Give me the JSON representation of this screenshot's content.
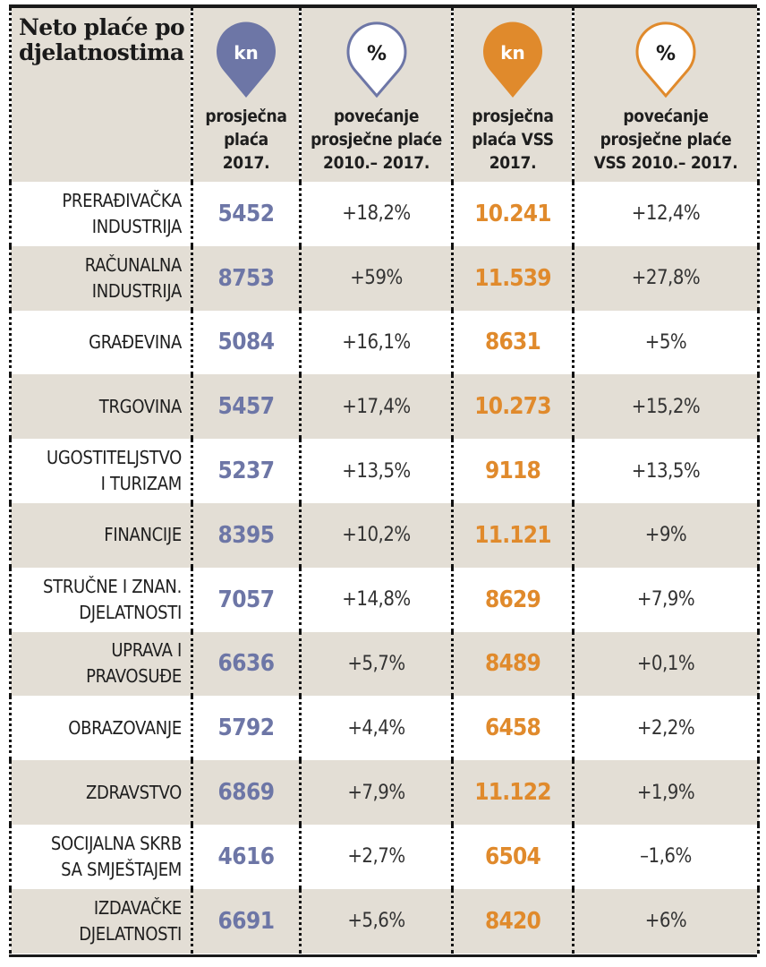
{
  "colors": {
    "blue": "#6d76a6",
    "orange": "#e08a2c",
    "band": "#e3ded5"
  },
  "header": {
    "title_lines": [
      "Neto plaće po",
      "djelatnostima"
    ],
    "columns": [
      {
        "icon": "kn",
        "icon_style": "filled-blue-pin",
        "label_lines": [
          "prosječna",
          "plaća",
          "2017."
        ]
      },
      {
        "icon": "%",
        "icon_style": "outlined-blue-pin",
        "label_lines": [
          "povećanje",
          "prosječne plaće",
          "2010.– 2017."
        ]
      },
      {
        "icon": "kn",
        "icon_style": "filled-orange-pin",
        "label_lines": [
          "prosječna",
          "plaća VSS",
          "2017."
        ]
      },
      {
        "icon": "%",
        "icon_style": "outlined-orange-pin",
        "label_lines": [
          "povećanje",
          "prosječne plaće",
          "VSS 2010.– 2017."
        ]
      }
    ]
  },
  "chart_data": {
    "type": "table",
    "title": "Neto plaće po djelatnostima",
    "columns": [
      "djelatnost",
      "prosječna plaća 2017.",
      "povećanje prosječne plaće 2010.– 2017.",
      "prosječna plaća VSS 2017.",
      "povećanje prosječne plaće VSS 2010.– 2017."
    ],
    "rows": [
      {
        "name_lines": [
          "PRERAĐIVAČKA",
          "INDUSTRIJA"
        ],
        "avg": "5452",
        "avg_change": "+18,2%",
        "vss": "10.241",
        "vss_change": "+12,4%"
      },
      {
        "name_lines": [
          "RAČUNALNA",
          "INDUSTRIJA"
        ],
        "avg": "8753",
        "avg_change": "+59%",
        "vss": "11.539",
        "vss_change": "+27,8%"
      },
      {
        "name_lines": [
          "GRAĐEVINA"
        ],
        "avg": "5084",
        "avg_change": "+16,1%",
        "vss": "8631",
        "vss_change": "+5%"
      },
      {
        "name_lines": [
          "TRGOVINA"
        ],
        "avg": "5457",
        "avg_change": "+17,4%",
        "vss": "10.273",
        "vss_change": "+15,2%"
      },
      {
        "name_lines": [
          "UGOSTITELJSTVO",
          "I TURIZAM"
        ],
        "avg": "5237",
        "avg_change": "+13,5%",
        "vss": "9118",
        "vss_change": "+13,5%"
      },
      {
        "name_lines": [
          "FINANCIJE"
        ],
        "avg": "8395",
        "avg_change": "+10,2%",
        "vss": "11.121",
        "vss_change": "+9%"
      },
      {
        "name_lines": [
          "STRUČNE I ZNAN.",
          "DJELATNOSTI"
        ],
        "avg": "7057",
        "avg_change": "+14,8%",
        "vss": "8629",
        "vss_change": "+7,9%"
      },
      {
        "name_lines": [
          "UPRAVA I",
          "PRAVOSUĐE"
        ],
        "avg": "6636",
        "avg_change": "+5,7%",
        "vss": "8489",
        "vss_change": "+0,1%"
      },
      {
        "name_lines": [
          "OBRAZOVANJE"
        ],
        "avg": "5792",
        "avg_change": "+4,4%",
        "vss": "6458",
        "vss_change": "+2,2%"
      },
      {
        "name_lines": [
          "ZDRAVSTVO"
        ],
        "avg": "6869",
        "avg_change": "+7,9%",
        "vss": "11.122",
        "vss_change": "+1,9%"
      },
      {
        "name_lines": [
          "SOCIJALNA SKRB",
          "SA SMJEŠTAJEM"
        ],
        "avg": "4616",
        "avg_change": "+2,7%",
        "vss": "6504",
        "vss_change": "–1,6%"
      },
      {
        "name_lines": [
          "IZDAVAČKE",
          "DJELATNOSTI"
        ],
        "avg": "6691",
        "avg_change": "+5,6%",
        "vss": "8420",
        "vss_change": "+6%"
      }
    ]
  }
}
